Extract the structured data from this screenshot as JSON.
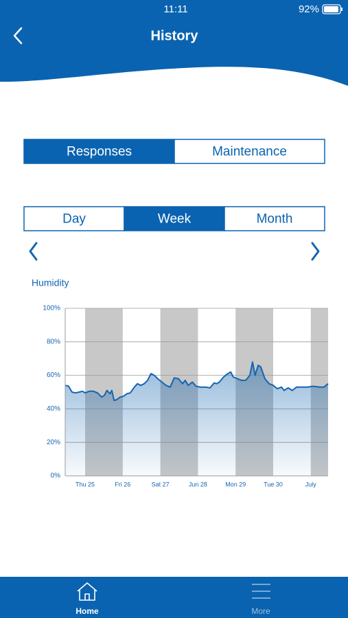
{
  "status_bar": {
    "time": "11:11",
    "battery": "92%"
  },
  "header": {
    "title": "History"
  },
  "segments": {
    "items": [
      "Responses",
      "Maintenance"
    ],
    "selected": 0
  },
  "periods": {
    "items": [
      "Day",
      "Week",
      "Month"
    ],
    "selected": 1
  },
  "chart_data": {
    "type": "area",
    "title": "Humidity",
    "color": "#1565b0",
    "x": [
      -0.53,
      -0.44,
      -0.35,
      -0.26,
      -0.16,
      -0.07,
      0,
      0.11,
      0.22,
      0.33,
      0.44,
      0.51,
      0.58,
      0.66,
      0.71,
      0.77,
      0.84,
      0.93,
      1.02,
      1.11,
      1.2,
      1.31,
      1.39,
      1.48,
      1.57,
      1.66,
      1.75,
      1.84,
      1.93,
      2.04,
      2.15,
      2.26,
      2.37,
      2.48,
      2.59,
      2.66,
      2.74,
      2.85,
      2.95,
      3.06,
      3.21,
      3.32,
      3.43,
      3.5,
      3.57,
      3.68,
      3.79,
      3.87,
      3.94,
      4.05,
      4.16,
      4.27,
      4.38,
      4.45,
      4.52,
      4.6,
      4.67,
      4.78,
      4.89,
      5.0,
      5.11,
      5.22,
      5.29,
      5.4,
      5.51,
      5.62,
      5.76,
      5.91,
      6.06,
      6.24,
      6.35,
      6.46
    ],
    "values": [
      54,
      53.5,
      50,
      49.5,
      50,
      50.5,
      49.5,
      50.5,
      50.5,
      49.5,
      47,
      48,
      51,
      49,
      51,
      45,
      45.5,
      47,
      47.5,
      49,
      49.5,
      53,
      55,
      54,
      55,
      57,
      61,
      60,
      58,
      56,
      54,
      53,
      58.5,
      58,
      55,
      57,
      54,
      56,
      53.5,
      53,
      53,
      52.5,
      55.5,
      55,
      56,
      59,
      61,
      62,
      59,
      58,
      57,
      57,
      60,
      68,
      60,
      66,
      65,
      58,
      55,
      54,
      52,
      53,
      51,
      52.5,
      51,
      53,
      53,
      53,
      53.5,
      53,
      53,
      55
    ],
    "xlim": [
      -0.53,
      6.46
    ],
    "xticks": [
      {
        "value": 0,
        "label": "Thu 25"
      },
      {
        "value": 1,
        "label": "Fri 26"
      },
      {
        "value": 2,
        "label": "Sat 27"
      },
      {
        "value": 3,
        "label": "Jun 28"
      },
      {
        "value": 4,
        "label": "Mon 29"
      },
      {
        "value": 5,
        "label": "Tue 30"
      },
      {
        "value": 6,
        "label": "July"
      }
    ],
    "ylim": [
      0,
      100
    ],
    "yticks": [
      {
        "value": 0,
        "label": "0%"
      },
      {
        "value": 20,
        "label": "20%"
      },
      {
        "value": 40,
        "label": "40%"
      },
      {
        "value": 60,
        "label": "60%"
      },
      {
        "value": 80,
        "label": "80%"
      },
      {
        "value": 100,
        "label": "100%"
      }
    ],
    "grid": true
  },
  "tab_bar": {
    "items": [
      "Home",
      "More"
    ],
    "active": 0
  }
}
